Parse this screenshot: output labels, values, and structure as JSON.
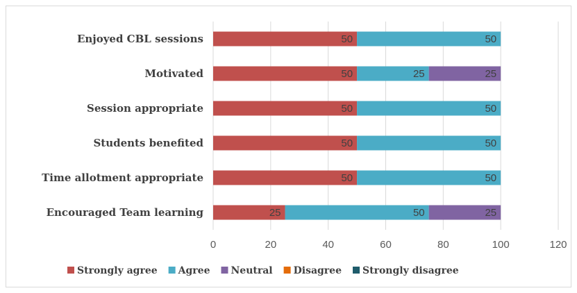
{
  "chart_data": {
    "type": "bar",
    "orientation": "horizontal",
    "stacked": true,
    "categories": [
      "Enjoyed CBL sessions",
      "Motivated",
      "Session appropriate",
      "Students benefited",
      "Time allotment appropriate",
      "Encouraged Team learning"
    ],
    "series": [
      {
        "name": "Strongly agree",
        "color": "#c0504d",
        "values": [
          50,
          50,
          50,
          50,
          50,
          25
        ]
      },
      {
        "name": "Agree",
        "color": "#4bacc6",
        "values": [
          50,
          25,
          50,
          50,
          50,
          50
        ]
      },
      {
        "name": "Neutral",
        "color": "#8064a2",
        "values": [
          0,
          25,
          0,
          0,
          0,
          25
        ]
      },
      {
        "name": "Disagree",
        "color": "#e46c0a",
        "values": [
          0,
          0,
          0,
          0,
          0,
          0
        ]
      },
      {
        "name": "Strongly disagree",
        "color": "#1f5c6b",
        "values": [
          0,
          0,
          0,
          0,
          0,
          0
        ]
      }
    ],
    "xlim": [
      0,
      120
    ],
    "xticks": [
      0,
      20,
      40,
      60,
      80,
      100,
      120
    ],
    "grid": true,
    "legend_position": "bottom"
  }
}
